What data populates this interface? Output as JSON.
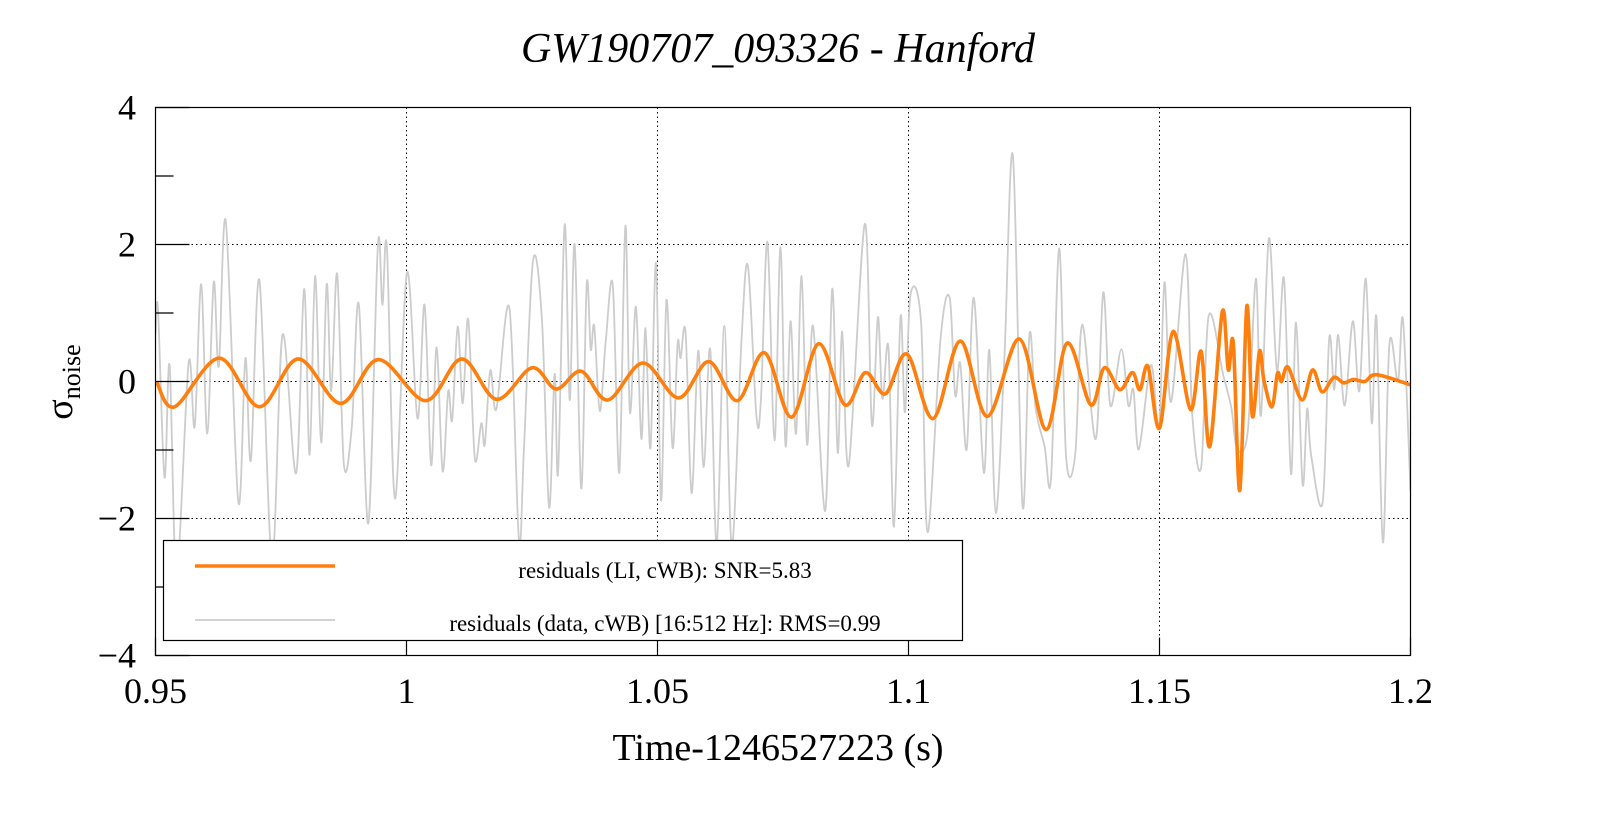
{
  "chart_data": {
    "type": "line",
    "title": "GW190707_093326 - Hanford",
    "xlabel": "Time-1246527223 (s)",
    "ylabel": "σ",
    "ylabel_sub": "noise",
    "xlim": [
      0.95,
      1.2
    ],
    "ylim": [
      -4,
      4
    ],
    "xticks": [
      0.95,
      1.0,
      1.05,
      1.1,
      1.15,
      1.2
    ],
    "xtick_labels": [
      "0.95",
      "1",
      "1.05",
      "1.1",
      "1.15",
      "1.2"
    ],
    "yticks": [
      -4,
      -2,
      0,
      2,
      4
    ],
    "ytick_labels": [
      "−4",
      "−2",
      "0",
      "2",
      "4"
    ],
    "yminor": [
      -3,
      -1,
      1,
      3
    ],
    "grid": true,
    "legend_placement": "bottom-left",
    "series": [
      {
        "name": "residuals (LI, cWB): SNR=5.83",
        "color": "#ff7f0e",
        "points": [
          [
            0.9502,
            0
          ],
          [
            0.9538,
            -0.37
          ],
          [
            0.9627,
            0.34
          ],
          [
            0.9707,
            -0.37
          ],
          [
            0.9784,
            0.33
          ],
          [
            0.9869,
            -0.32
          ],
          [
            0.9944,
            0.32
          ],
          [
            1.0038,
            -0.28
          ],
          [
            1.011,
            0.33
          ],
          [
            1.0179,
            -0.26
          ],
          [
            1.025,
            0.2
          ],
          [
            1.0298,
            -0.11
          ],
          [
            1.0348,
            0.15
          ],
          [
            1.0401,
            -0.27
          ],
          [
            1.0471,
            0.27
          ],
          [
            1.0542,
            -0.24
          ],
          [
            1.0602,
            0.29
          ],
          [
            1.0659,
            -0.28
          ],
          [
            1.0713,
            0.42
          ],
          [
            1.0767,
            -0.52
          ],
          [
            1.0821,
            0.55
          ],
          [
            1.0873,
            -0.34
          ],
          [
            1.0914,
            0.13
          ],
          [
            1.0954,
            -0.18
          ],
          [
            1.0997,
            0.4
          ],
          [
            1.1049,
            -0.54
          ],
          [
            1.1103,
            0.59
          ],
          [
            1.1157,
            -0.51
          ],
          [
            1.1221,
            0.62
          ],
          [
            1.1274,
            -0.7
          ],
          [
            1.1316,
            0.56
          ],
          [
            1.1363,
            -0.34
          ],
          [
            1.139,
            0.2
          ],
          [
            1.1421,
            -0.12
          ],
          [
            1.1446,
            0.13
          ],
          [
            1.1461,
            -0.12
          ],
          [
            1.1477,
            0.22
          ],
          [
            1.15,
            -0.68
          ],
          [
            1.1527,
            0.73
          ],
          [
            1.1562,
            -0.41
          ],
          [
            1.1583,
            0.44
          ],
          [
            1.16,
            -0.95
          ],
          [
            1.1625,
            1.02
          ],
          [
            1.1637,
            0.17
          ],
          [
            1.1647,
            0.56
          ],
          [
            1.166,
            -1.59
          ],
          [
            1.1674,
            1.1
          ],
          [
            1.1685,
            -0.51
          ],
          [
            1.1699,
            0.44
          ],
          [
            1.1708,
            0.02
          ],
          [
            1.1724,
            -0.37
          ],
          [
            1.1735,
            0.12
          ],
          [
            1.1743,
            0.0
          ],
          [
            1.1756,
            0.21
          ],
          [
            1.1784,
            -0.27
          ],
          [
            1.1805,
            0.17
          ],
          [
            1.1824,
            -0.15
          ],
          [
            1.1847,
            0.06
          ],
          [
            1.1867,
            -0.02
          ],
          [
            1.1886,
            0.03
          ],
          [
            1.1909,
            0.0
          ],
          [
            1.1932,
            0.1
          ],
          [
            1.2,
            -0.05
          ]
        ]
      },
      {
        "name": "residuals (data, cWB) [16:512 Hz]: RMS=0.99",
        "color": "#cccccc",
        "points": [
          [
            0.95,
            0.7
          ],
          [
            0.9505,
            1.06
          ],
          [
            0.9518,
            -1.4
          ],
          [
            0.9528,
            0.24
          ],
          [
            0.9542,
            -2.8
          ],
          [
            0.9566,
            0.27
          ],
          [
            0.9578,
            -0.66
          ],
          [
            0.9591,
            1.42
          ],
          [
            0.9603,
            -0.76
          ],
          [
            0.9616,
            1.45
          ],
          [
            0.9626,
            0.22
          ],
          [
            0.964,
            2.34
          ],
          [
            0.9665,
            -1.76
          ],
          [
            0.9679,
            0.34
          ],
          [
            0.969,
            -1.15
          ],
          [
            0.9707,
            1.48
          ],
          [
            0.9732,
            -2.6
          ],
          [
            0.9753,
            0.68
          ],
          [
            0.978,
            -1.34
          ],
          [
            0.9796,
            1.35
          ],
          [
            0.9807,
            -1.07
          ],
          [
            0.9818,
            1.54
          ],
          [
            0.983,
            -0.89
          ],
          [
            0.9841,
            1.42
          ],
          [
            0.985,
            -0.14
          ],
          [
            0.9862,
            1.57
          ],
          [
            0.9875,
            -1.2
          ],
          [
            0.9891,
            -0.66
          ],
          [
            0.9905,
            1.13
          ],
          [
            0.9924,
            -2.07
          ],
          [
            0.9943,
            1.99
          ],
          [
            0.9952,
            1.12
          ],
          [
            0.9961,
            1.96
          ],
          [
            0.9977,
            -1.71
          ],
          [
            1.0001,
            1.59
          ],
          [
            1.0022,
            -0.54
          ],
          [
            1.0036,
            1.12
          ],
          [
            1.0049,
            -1.22
          ],
          [
            1.006,
            0.5
          ],
          [
            1.0072,
            -1.31
          ],
          [
            1.0083,
            -0.14
          ],
          [
            1.0091,
            -0.56
          ],
          [
            1.0102,
            0.8
          ],
          [
            1.0112,
            -0.32
          ],
          [
            1.0123,
            0.91
          ],
          [
            1.0136,
            -1.12
          ],
          [
            1.0149,
            -0.61
          ],
          [
            1.0156,
            -0.92
          ],
          [
            1.0167,
            0.16
          ],
          [
            1.0179,
            -0.4
          ],
          [
            1.0205,
            1.07
          ],
          [
            1.0224,
            -2.3
          ],
          [
            1.0234,
            -0.97
          ],
          [
            1.0252,
            1.76
          ],
          [
            1.027,
            0.88
          ],
          [
            1.0284,
            -1.84
          ],
          [
            1.0295,
            0.11
          ],
          [
            1.0302,
            -1.33
          ],
          [
            1.0315,
            2.29
          ],
          [
            1.0325,
            -0.27
          ],
          [
            1.0335,
            2.0
          ],
          [
            1.0348,
            -1.56
          ],
          [
            1.0359,
            1.42
          ],
          [
            1.0367,
            0.47
          ],
          [
            1.0374,
            0.81
          ],
          [
            1.0385,
            -0.43
          ],
          [
            1.0397,
            0.6
          ],
          [
            1.0411,
            1.4
          ],
          [
            1.0424,
            -1.33
          ],
          [
            1.0436,
            2.27
          ],
          [
            1.0445,
            -0.45
          ],
          [
            1.0457,
            1.09
          ],
          [
            1.0468,
            -0.84
          ],
          [
            1.0476,
            0.78
          ],
          [
            1.0486,
            -0.97
          ],
          [
            1.0497,
            1.73
          ],
          [
            1.0507,
            -1.74
          ],
          [
            1.0518,
            1.19
          ],
          [
            1.053,
            -0.97
          ],
          [
            1.054,
            0.55
          ],
          [
            1.0546,
            0.34
          ],
          [
            1.0556,
            0.71
          ],
          [
            1.0568,
            -1.63
          ],
          [
            1.0581,
            0.45
          ],
          [
            1.0592,
            -1.25
          ],
          [
            1.0605,
            0.47
          ],
          [
            1.0618,
            -2.4
          ],
          [
            1.0633,
            0.81
          ],
          [
            1.0648,
            -2.4
          ],
          [
            1.0667,
            0.55
          ],
          [
            1.068,
            1.69
          ],
          [
            1.0697,
            -0.5
          ],
          [
            1.0706,
            -0.27
          ],
          [
            1.0719,
            2.04
          ],
          [
            1.0733,
            -0.86
          ],
          [
            1.0745,
            1.96
          ],
          [
            1.0755,
            -0.94
          ],
          [
            1.0765,
            0.88
          ],
          [
            1.0776,
            -0.76
          ],
          [
            1.0787,
            1.54
          ],
          [
            1.0798,
            -0.92
          ],
          [
            1.081,
            0.81
          ],
          [
            1.0834,
            -1.89
          ],
          [
            1.0848,
            1.35
          ],
          [
            1.0859,
            -1.04
          ],
          [
            1.0868,
            0.73
          ],
          [
            1.0881,
            -1.22
          ],
          [
            1.0913,
            2.3
          ],
          [
            1.0927,
            -0.63
          ],
          [
            1.0939,
            0.94
          ],
          [
            1.0948,
            -0.25
          ],
          [
            1.096,
            0.5
          ],
          [
            1.0971,
            -2.12
          ],
          [
            1.0984,
            0.94
          ],
          [
            1.0993,
            -0.45
          ],
          [
            1.1004,
            1.27
          ],
          [
            1.1025,
            0.86
          ],
          [
            1.1038,
            -2.2
          ],
          [
            1.1064,
            0.63
          ],
          [
            1.1082,
            1.22
          ],
          [
            1.1093,
            -0.2
          ],
          [
            1.1103,
            0.27
          ],
          [
            1.1116,
            -0.99
          ],
          [
            1.113,
            1.22
          ],
          [
            1.115,
            -1.33
          ],
          [
            1.1161,
            0.46
          ],
          [
            1.1174,
            -1.92
          ],
          [
            1.1191,
            0.34
          ],
          [
            1.1208,
            3.3
          ],
          [
            1.1227,
            -1.81
          ],
          [
            1.1241,
            0.69
          ],
          [
            1.1253,
            -0.38
          ],
          [
            1.1271,
            -0.94
          ],
          [
            1.1284,
            -1.4
          ],
          [
            1.13,
            1.94
          ],
          [
            1.1314,
            -1.1
          ],
          [
            1.1332,
            -1.07
          ],
          [
            1.1346,
            0.83
          ],
          [
            1.1373,
            -0.84
          ],
          [
            1.1388,
            1.3
          ],
          [
            1.1402,
            -0.35
          ],
          [
            1.1424,
            0.47
          ],
          [
            1.1438,
            -0.35
          ],
          [
            1.1448,
            -0.12
          ],
          [
            1.1459,
            -0.99
          ],
          [
            1.1483,
            0.24
          ],
          [
            1.1499,
            -0.68
          ],
          [
            1.151,
            1.45
          ],
          [
            1.1523,
            -0.3
          ],
          [
            1.1552,
            1.86
          ],
          [
            1.1565,
            -0.45
          ],
          [
            1.1583,
            -1.25
          ],
          [
            1.1598,
            0.96
          ],
          [
            1.1627,
            0.09
          ],
          [
            1.1643,
            -0.38
          ],
          [
            1.1655,
            -0.99
          ],
          [
            1.1676,
            -0.71
          ],
          [
            1.1692,
            1.5
          ],
          [
            1.1702,
            -0.5
          ],
          [
            1.1718,
            2.09
          ],
          [
            1.1734,
            0.16
          ],
          [
            1.1748,
            1.5
          ],
          [
            1.1762,
            -1.35
          ],
          [
            1.1772,
            0.86
          ],
          [
            1.1785,
            -1.5
          ],
          [
            1.1794,
            -0.4
          ],
          [
            1.1802,
            -1.07
          ],
          [
            1.1825,
            -1.76
          ],
          [
            1.1838,
            0.63
          ],
          [
            1.1848,
            -0.12
          ],
          [
            1.1856,
            0.68
          ],
          [
            1.1869,
            -0.35
          ],
          [
            1.1885,
            0.88
          ],
          [
            1.1898,
            -0.14
          ],
          [
            1.1911,
            1.5
          ],
          [
            1.1923,
            -0.61
          ],
          [
            1.1932,
            0.94
          ],
          [
            1.1945,
            -2.35
          ],
          [
            1.1958,
            0.55
          ],
          [
            1.1975,
            0.0
          ],
          [
            1.1985,
            0.9
          ],
          [
            1.2,
            -1.6
          ]
        ]
      }
    ]
  }
}
